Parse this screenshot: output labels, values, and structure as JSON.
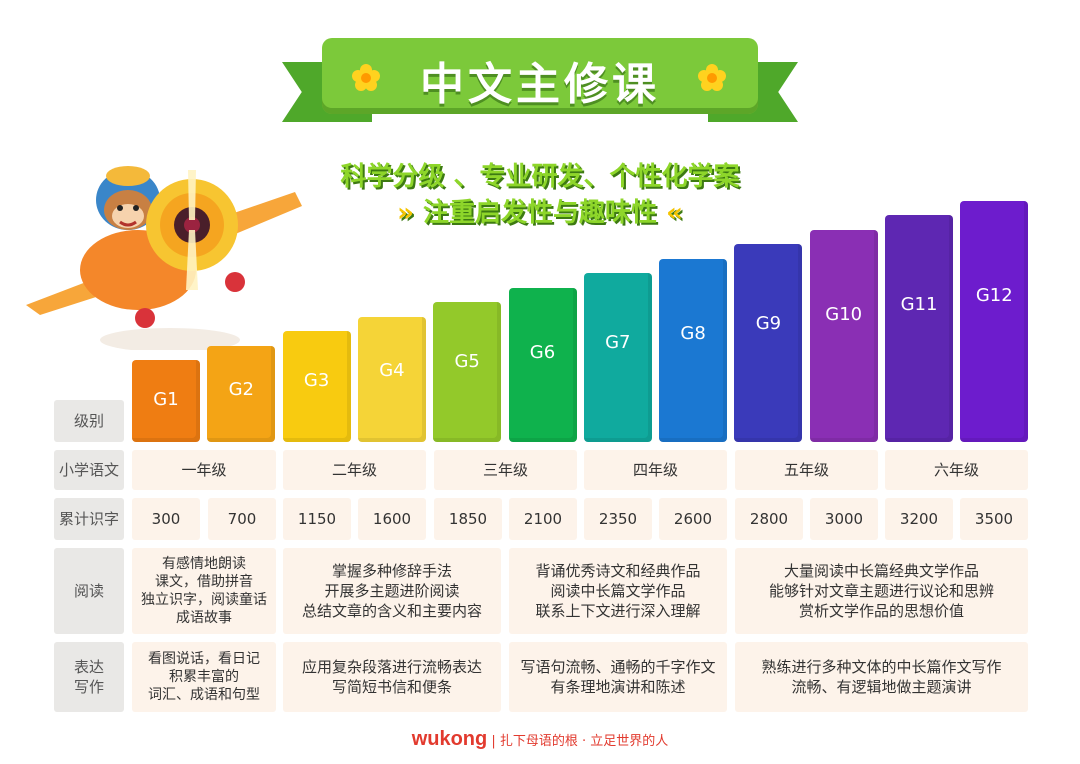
{
  "header": {
    "title": "中文主修课",
    "subtitle_line1": "科学分级 、专业研发、个性化学案",
    "subtitle_line2": "注重启发性与趣味性",
    "chevron_left": "»",
    "chevron_right": "«"
  },
  "grades": [
    {
      "label": "G1",
      "color": "#ef7d12",
      "level": 1
    },
    {
      "label": "G2",
      "color": "#f4a415",
      "level": 2
    },
    {
      "label": "G3",
      "color": "#f8cb10",
      "level": 3
    },
    {
      "label": "G4",
      "color": "#f5d437",
      "level": 4
    },
    {
      "label": "G5",
      "color": "#93c92a",
      "level": 5
    },
    {
      "label": "G6",
      "color": "#0fb24d",
      "level": 6
    },
    {
      "label": "G7",
      "color": "#10aa9e",
      "level": 7
    },
    {
      "label": "G8",
      "color": "#1b78d2",
      "level": 8
    },
    {
      "label": "G9",
      "color": "#3a3aba",
      "level": 9
    },
    {
      "label": "G10",
      "color": "#8a2fb4",
      "level": 10
    },
    {
      "label": "G11",
      "color": "#5e27b2",
      "level": 11
    },
    {
      "label": "G12",
      "color": "#6d1ccd",
      "level": 12
    }
  ],
  "table": {
    "row_labels": {
      "level": "级别",
      "school_grade": "小学语文",
      "characters": "累计识字",
      "reading": "阅读",
      "writing_line1": "表达",
      "writing_line2": "写作"
    },
    "school_grades": [
      "一年级",
      "二年级",
      "三年级",
      "四年级",
      "五年级",
      "六年级"
    ],
    "characters": [
      "300",
      "700",
      "1150",
      "1600",
      "1850",
      "2100",
      "2350",
      "2600",
      "2800",
      "3000",
      "3200",
      "3500"
    ],
    "reading": [
      [
        "有感情地朗读",
        "课文，借助拼音",
        "独立识字，阅读童话",
        "成语故事"
      ],
      [
        "掌握多种修辞手法",
        "开展多主题进阶阅读",
        "总结文章的含义和主要内容"
      ],
      [
        "背诵优秀诗文和经典作品",
        "阅读中长篇文学作品",
        "联系上下文进行深入理解"
      ],
      [
        "大量阅读中长篇经典文学作品",
        "能够针对文章主题进行议论和思辨",
        "赏析文学作品的思想价值"
      ]
    ],
    "writing": [
      [
        "看图说话，看日记",
        "积累丰富的",
        "词汇、成语和句型"
      ],
      [
        "应用复杂段落进行流畅表达",
        "写简短书信和便条"
      ],
      [
        "写语句流畅、通畅的千字作文",
        "有条理地演讲和陈述"
      ],
      [
        "熟练进行多种文体的中长篇作文写作",
        "流畅、有逻辑地做主题演讲"
      ]
    ]
  },
  "footer": {
    "brand": "wukong",
    "slogan": "| 扎下母语的根 · 立足世界的人"
  }
}
